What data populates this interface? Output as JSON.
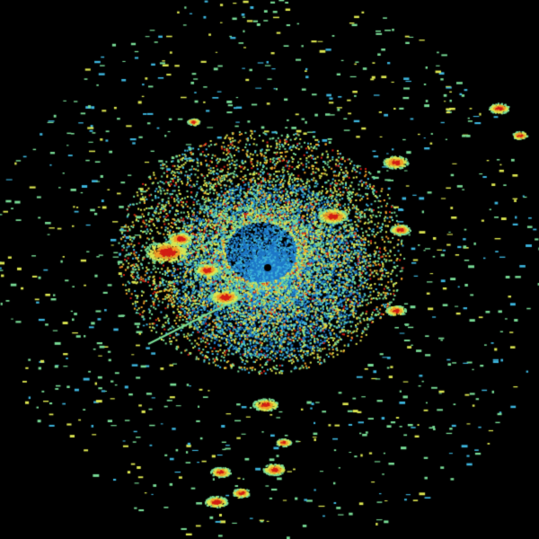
{
  "image": {
    "kind": "radar reflectivity scan",
    "background": "#000000",
    "palette": {
      "low": "#1e78c8",
      "low_mid": "#3cb4dc",
      "mid": "#78dc96",
      "mid_high": "#dce650",
      "high": "#f0a028",
      "very_high": "#d21e14"
    }
  }
}
